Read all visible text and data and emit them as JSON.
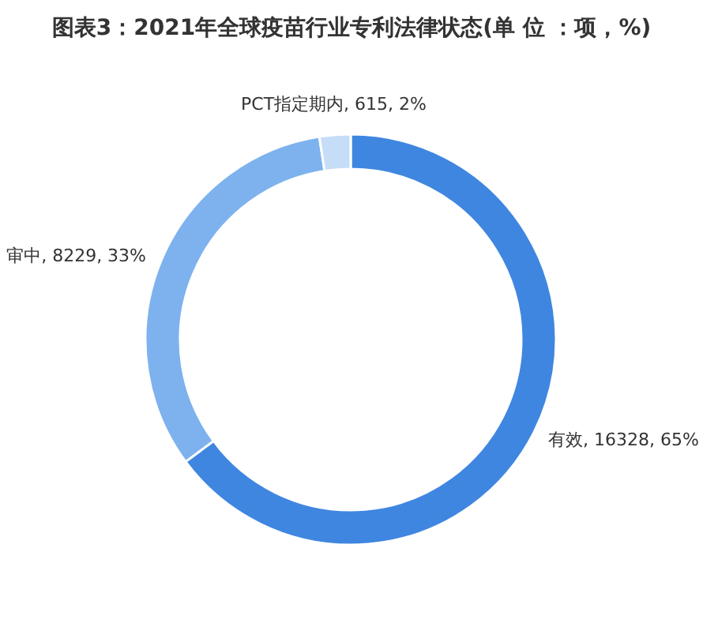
{
  "chart_data": {
    "type": "donut",
    "title": "图表3：2021年全球疫苗行业专利法律状态(单 位 ：项，%)",
    "categories": [
      "有效",
      "审中",
      "PCT指定期内"
    ],
    "values": [
      16328,
      8229,
      615
    ],
    "colors": [
      "#3f86e0",
      "#7db2ee",
      "#c6ddf7"
    ],
    "value_labels": [
      "16328, 65%",
      "8229, 33%",
      "615, 2%"
    ]
  }
}
